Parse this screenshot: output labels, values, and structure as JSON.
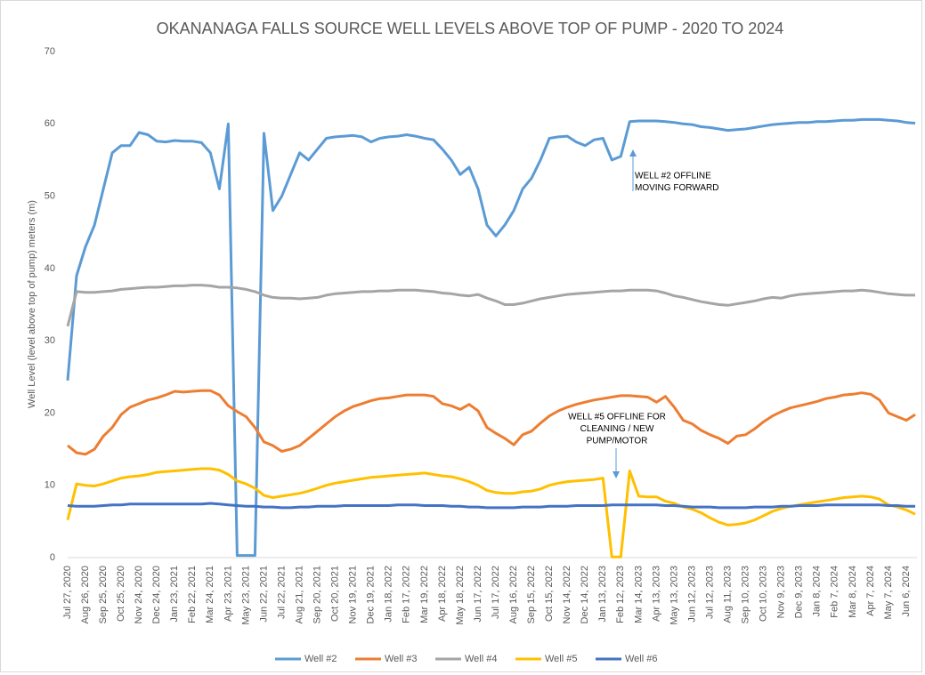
{
  "chart_data": {
    "type": "line",
    "title": "OKANANAGA FALLS SOURCE WELL LEVELS ABOVE TOP OF PUMP - 2020 TO 2024",
    "y_label": "Well Level (level above top of pump) meters (m)",
    "categories": [
      "Jul 27, 2020",
      null,
      "Aug 26, 2020",
      null,
      "Sep 25, 2020",
      null,
      "Oct 25, 2020",
      null,
      "Nov 24, 2020",
      null,
      "Dec 24, 2020",
      null,
      "Jan 23, 2021",
      null,
      "Feb 22, 2021",
      null,
      "Mar 24, 2021",
      null,
      "Apr 23, 2021",
      null,
      "May 23, 2021",
      null,
      "Jun 22, 2021",
      null,
      "Jul 22, 2021",
      null,
      "Aug 21, 2021",
      null,
      "Sep 20, 2021",
      null,
      "Oct 20, 2021",
      null,
      "Nov 19, 2021",
      null,
      "Dec 19, 2021",
      null,
      "Jan 18, 2022",
      null,
      "Feb 17, 2022",
      null,
      "Mar 19, 2022",
      null,
      "Apr 18, 2022",
      null,
      "May 18, 2022",
      null,
      "Jun 17, 2022",
      null,
      "Jul 17, 2022",
      null,
      "Aug 16, 2022",
      null,
      "Sep 15, 2022",
      null,
      "Oct 15, 2022",
      null,
      "Nov 14, 2022",
      null,
      "Dec 14, 2022",
      null,
      "Jan 13, 2023",
      null,
      "Feb 12, 2023",
      null,
      "Mar 14, 2023",
      null,
      "Apr 13, 2023",
      null,
      "May 13, 2023",
      null,
      "Jun 12, 2023",
      null,
      "Jul 12, 2023",
      null,
      "Aug 11, 2023",
      null,
      "Sep 10, 2023",
      null,
      "Oct 10, 2023",
      null,
      "Nov 9, 2023",
      null,
      "Dec 9, 2023",
      null,
      "Jan 8, 2024",
      null,
      "Feb 7, 2024",
      null,
      "Mar 8, 2024",
      null,
      "Apr 7, 2024",
      null,
      "May 7, 2024",
      null,
      "Jun 6, 2024",
      null
    ],
    "series": [
      {
        "name": "Well #2",
        "color": "#5b9bd5",
        "values": [
          24.5,
          39,
          43,
          46,
          51,
          56,
          57,
          57,
          58.8,
          58.5,
          57.6,
          57.5,
          57.7,
          57.6,
          57.6,
          57.4,
          56,
          51,
          60,
          0.3,
          0.3,
          0.3,
          58.7,
          48,
          50,
          53,
          56,
          55,
          56.5,
          58,
          58.2,
          58.3,
          58.4,
          58.2,
          57.5,
          58,
          58.2,
          58.3,
          58.5,
          58.3,
          58,
          57.8,
          56.5,
          55,
          53,
          54,
          51,
          46,
          44.5,
          46,
          48,
          51,
          52.5,
          55,
          58,
          58.2,
          58.3,
          57.5,
          57,
          57.8,
          58,
          55,
          55.5,
          60.3,
          60.4,
          60.4,
          60.4,
          60.3,
          60.2,
          60,
          59.9,
          59.6,
          59.5,
          59.3,
          59.1,
          59.2,
          59.3,
          59.5,
          59.7,
          59.9,
          60,
          60.1,
          60.2,
          60.2,
          60.3,
          60.3,
          60.4,
          60.5,
          60.5,
          60.6,
          60.6,
          60.6,
          60.5,
          60.4,
          60.2,
          60.1
        ]
      },
      {
        "name": "Well #3",
        "color": "#ed7d31",
        "values": [
          15.5,
          14.5,
          14.3,
          15,
          16.8,
          18,
          19.8,
          20.8,
          21.3,
          21.8,
          22.1,
          22.5,
          23,
          22.9,
          23,
          23.1,
          23.1,
          22.5,
          21,
          20.2,
          19.5,
          18,
          16,
          15.5,
          14.7,
          15,
          15.5,
          16.5,
          17.5,
          18.5,
          19.5,
          20.3,
          20.9,
          21.3,
          21.7,
          22,
          22.1,
          22.3,
          22.5,
          22.5,
          22.5,
          22.3,
          21.3,
          21,
          20.5,
          21.2,
          20.3,
          18,
          17.2,
          16.5,
          15.6,
          17,
          17.5,
          18.6,
          19.6,
          20.3,
          20.8,
          21.2,
          21.5,
          21.8,
          22,
          22.2,
          22.4,
          22.4,
          22.3,
          22.2,
          21.5,
          22.3,
          20.8,
          19,
          18.5,
          17.6,
          17,
          16.5,
          15.8,
          16.8,
          17,
          17.8,
          18.8,
          19.6,
          20.2,
          20.7,
          21,
          21.3,
          21.6,
          22,
          22.2,
          22.5,
          22.6,
          22.8,
          22.6,
          21.8,
          20,
          19.5,
          19,
          19.8
        ]
      },
      {
        "name": "Well #4",
        "color": "#a5a5a5",
        "values": [
          32,
          36.8,
          36.7,
          36.7,
          36.8,
          36.9,
          37.1,
          37.2,
          37.3,
          37.4,
          37.4,
          37.5,
          37.6,
          37.6,
          37.7,
          37.7,
          37.6,
          37.4,
          37.4,
          37.3,
          37.1,
          36.8,
          36.3,
          36.0,
          35.9,
          35.9,
          35.8,
          35.9,
          36.0,
          36.3,
          36.5,
          36.6,
          36.7,
          36.8,
          36.8,
          36.9,
          36.9,
          37.0,
          37.0,
          37.0,
          36.9,
          36.8,
          36.6,
          36.5,
          36.3,
          36.2,
          36.4,
          35.9,
          35.5,
          35.0,
          35.0,
          35.2,
          35.5,
          35.8,
          36.0,
          36.2,
          36.4,
          36.5,
          36.6,
          36.7,
          36.8,
          36.9,
          36.9,
          37.0,
          37.0,
          37.0,
          36.9,
          36.6,
          36.2,
          36.0,
          35.7,
          35.4,
          35.2,
          35.0,
          34.9,
          35.1,
          35.3,
          35.5,
          35.8,
          36.0,
          35.9,
          36.2,
          36.4,
          36.5,
          36.6,
          36.7,
          36.8,
          36.9,
          36.9,
          37.0,
          36.9,
          36.7,
          36.5,
          36.4,
          36.3,
          36.3
        ]
      },
      {
        "name": "Well #5",
        "color": "#ffc000",
        "values": [
          5.2,
          10.2,
          10.0,
          9.9,
          10.2,
          10.6,
          11.0,
          11.2,
          11.3,
          11.5,
          11.8,
          11.9,
          12.0,
          12.1,
          12.2,
          12.3,
          12.3,
          12.1,
          11.5,
          10.6,
          10.2,
          9.6,
          8.6,
          8.3,
          8.5,
          8.7,
          8.9,
          9.2,
          9.6,
          10.0,
          10.3,
          10.5,
          10.7,
          10.9,
          11.1,
          11.2,
          11.3,
          11.4,
          11.5,
          11.6,
          11.7,
          11.5,
          11.3,
          11.2,
          10.9,
          10.5,
          10.0,
          9.3,
          9.0,
          8.9,
          8.9,
          9.1,
          9.2,
          9.5,
          10.0,
          10.3,
          10.5,
          10.6,
          10.7,
          10.8,
          11.0,
          0.1,
          0.1,
          12.0,
          8.5,
          8.4,
          8.4,
          7.8,
          7.5,
          7.0,
          6.7,
          6.2,
          5.5,
          4.9,
          4.5,
          4.6,
          4.8,
          5.2,
          5.8,
          6.4,
          6.8,
          7.1,
          7.3,
          7.5,
          7.7,
          7.9,
          8.1,
          8.3,
          8.4,
          8.5,
          8.4,
          8.1,
          7.3,
          7.0,
          6.6,
          6.0
        ]
      },
      {
        "name": "Well #6",
        "color": "#4472c4",
        "values": [
          7.2,
          7.1,
          7.1,
          7.1,
          7.2,
          7.3,
          7.3,
          7.4,
          7.4,
          7.4,
          7.4,
          7.4,
          7.4,
          7.4,
          7.4,
          7.4,
          7.5,
          7.4,
          7.3,
          7.2,
          7.1,
          7.1,
          7.0,
          7.0,
          6.9,
          6.9,
          7.0,
          7.0,
          7.1,
          7.1,
          7.1,
          7.2,
          7.2,
          7.2,
          7.2,
          7.2,
          7.2,
          7.3,
          7.3,
          7.3,
          7.2,
          7.2,
          7.2,
          7.1,
          7.1,
          7.0,
          7.0,
          6.9,
          6.9,
          6.9,
          6.9,
          7.0,
          7.0,
          7.0,
          7.1,
          7.1,
          7.1,
          7.2,
          7.2,
          7.2,
          7.2,
          7.3,
          7.3,
          7.3,
          7.3,
          7.3,
          7.3,
          7.2,
          7.2,
          7.1,
          7.0,
          7.0,
          7.0,
          6.9,
          6.9,
          6.9,
          6.9,
          7.0,
          7.0,
          7.0,
          7.1,
          7.1,
          7.2,
          7.2,
          7.2,
          7.3,
          7.3,
          7.3,
          7.3,
          7.3,
          7.3,
          7.3,
          7.2,
          7.2,
          7.1,
          7.1
        ]
      }
    ],
    "ylim": [
      0,
      70
    ],
    "yticks": [
      0,
      10,
      20,
      30,
      40,
      50,
      60,
      70
    ],
    "grid": false,
    "legend": "bottom",
    "annotations": [
      {
        "lines": [
          "WELL #2 OFFLINE",
          "MOVING FORWARD"
        ]
      },
      {
        "lines": [
          "WELL #5 OFFLINE FOR",
          "CLEANING / NEW",
          "PUMP/MOTOR"
        ]
      }
    ]
  }
}
